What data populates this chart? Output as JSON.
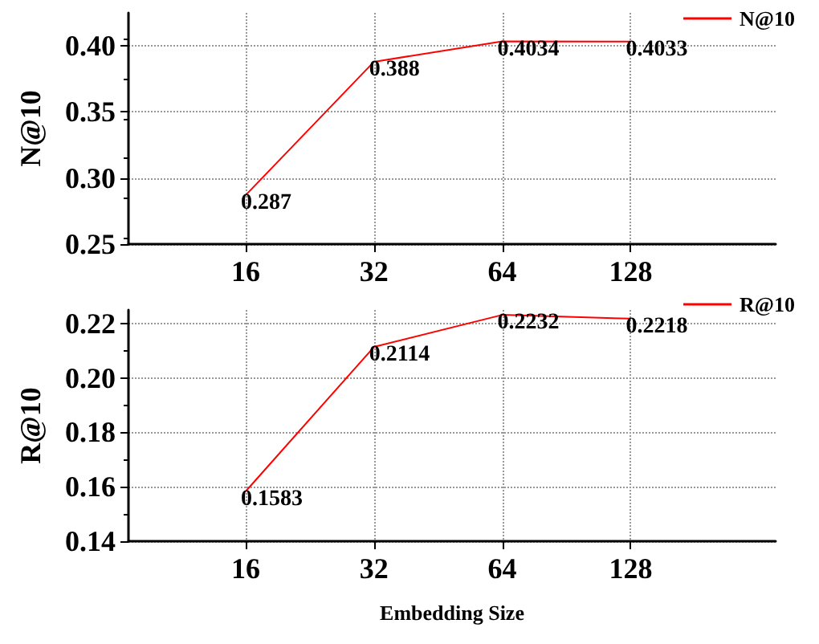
{
  "chart_data": [
    {
      "type": "line",
      "ylabel": "N@10",
      "x": [
        16,
        32,
        64,
        128
      ],
      "log": "x",
      "xlim": [
        8.5,
        280
      ],
      "xticks": [
        16,
        32,
        64,
        128
      ],
      "ylim": [
        0.25,
        0.425
      ],
      "yticks": [
        {
          "value": 0.25,
          "label": "0.25"
        },
        {
          "value": 0.3,
          "label": "0.30"
        },
        {
          "value": 0.35,
          "label": "0.35"
        },
        {
          "value": 0.4,
          "label": "0.40"
        }
      ],
      "series": [
        {
          "name": "N@10",
          "color": "#ff0000",
          "values": [
            0.287,
            0.388,
            0.4034,
            0.4033
          ]
        }
      ],
      "data_labels": true,
      "grid": true,
      "legend": "top right",
      "marker": "none",
      "line_style": "solid"
    },
    {
      "type": "line",
      "xlabel": "Embedding Size",
      "ylabel": "R@10",
      "x": [
        16,
        32,
        64,
        128
      ],
      "log": "x",
      "xlim": [
        8.5,
        280
      ],
      "xticks": [
        16,
        32,
        64,
        128
      ],
      "ylim": [
        0.14,
        0.225
      ],
      "yticks": [
        {
          "value": 0.14,
          "label": "0.14"
        },
        {
          "value": 0.16,
          "label": "0.16"
        },
        {
          "value": 0.18,
          "label": "0.18"
        },
        {
          "value": 0.2,
          "label": "0.20"
        },
        {
          "value": 0.22,
          "label": "0.22"
        }
      ],
      "series": [
        {
          "name": "R@10",
          "color": "#ff0000",
          "values": [
            0.1583,
            0.2114,
            0.2232,
            0.2218
          ]
        }
      ],
      "data_labels": true,
      "grid": true,
      "legend": "top right",
      "marker": "none",
      "line_style": "solid"
    }
  ]
}
